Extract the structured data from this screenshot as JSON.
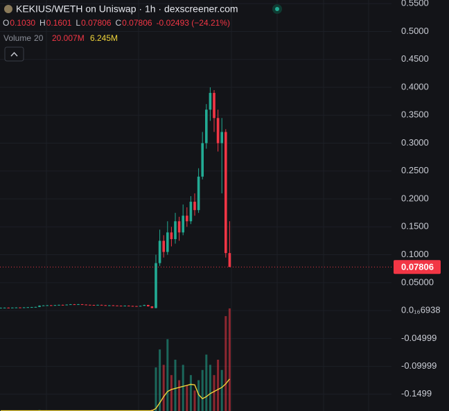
{
  "header": {
    "title": "KEKIUS/WETH on Uniswap · 1h · dexscreener.com",
    "ohlc": [
      {
        "key": "O",
        "value": "0.1030"
      },
      {
        "key": "H",
        "value": "0.1601"
      },
      {
        "key": "L",
        "value": "0.07806"
      },
      {
        "key": "C",
        "value": "0.07806"
      }
    ],
    "change": "-0.02493 (−24.21%)"
  },
  "chart_data": {
    "type": "candlestick",
    "open": [
      0.0048,
      0.005,
      0.0052,
      0.0049,
      0.0053,
      0.0055,
      0.0054,
      0.0057,
      0.006,
      0.0062,
      0.0065,
      0.0088,
      0.0092,
      0.0095,
      0.0093,
      0.0098,
      0.0102,
      0.01,
      0.0106,
      0.0112,
      0.0108,
      0.0113,
      0.0107,
      0.0103,
      0.01,
      0.0098,
      0.0102,
      0.0096,
      0.0092,
      0.0094,
      0.009,
      0.0087,
      0.0085,
      0.0088,
      0.0083,
      0.008,
      0.0078,
      0.0085,
      0.01,
      0.0075,
      0.0045,
      0.085,
      0.125,
      0.105,
      0.14,
      0.128,
      0.16,
      0.14,
      0.17,
      0.16,
      0.195,
      0.18,
      0.24,
      0.3,
      0.36,
      0.39,
      0.345,
      0.3,
      0.32,
      0.103
    ],
    "high": [
      0.0053,
      0.0054,
      0.0055,
      0.0056,
      0.0058,
      0.0058,
      0.006,
      0.0063,
      0.0065,
      0.0068,
      0.0092,
      0.0096,
      0.0099,
      0.0099,
      0.0101,
      0.0106,
      0.0106,
      0.011,
      0.0116,
      0.0116,
      0.0117,
      0.0116,
      0.011,
      0.0106,
      0.0103,
      0.0105,
      0.0105,
      0.0099,
      0.0097,
      0.0097,
      0.0093,
      0.009,
      0.0091,
      0.0091,
      0.0086,
      0.0083,
      0.0088,
      0.0104,
      0.0103,
      0.0078,
      0.1,
      0.145,
      0.135,
      0.16,
      0.15,
      0.175,
      0.168,
      0.19,
      0.185,
      0.205,
      0.21,
      0.255,
      0.32,
      0.37,
      0.4,
      0.395,
      0.36,
      0.345,
      0.325,
      0.1601
    ],
    "low": [
      0.0045,
      0.0047,
      0.0046,
      0.0046,
      0.005,
      0.0051,
      0.0051,
      0.0054,
      0.0057,
      0.0059,
      0.0062,
      0.0085,
      0.0089,
      0.009,
      0.009,
      0.0095,
      0.0097,
      0.0097,
      0.0103,
      0.0105,
      0.0105,
      0.0104,
      0.01,
      0.0097,
      0.0095,
      0.0095,
      0.0093,
      0.0089,
      0.0089,
      0.0087,
      0.0084,
      0.0082,
      0.0082,
      0.008,
      0.0077,
      0.0075,
      0.0075,
      0.0082,
      0.0072,
      0.0042,
      0.004,
      0.08,
      0.095,
      0.1,
      0.115,
      0.12,
      0.125,
      0.135,
      0.15,
      0.155,
      0.17,
      0.175,
      0.235,
      0.29,
      0.34,
      0.32,
      0.285,
      0.21,
      0.095,
      0.07806
    ],
    "close": [
      0.005,
      0.0052,
      0.0049,
      0.0053,
      0.0055,
      0.0054,
      0.0057,
      0.006,
      0.0062,
      0.0065,
      0.0088,
      0.0092,
      0.0095,
      0.0093,
      0.0098,
      0.0102,
      0.01,
      0.0106,
      0.0112,
      0.0108,
      0.0113,
      0.0107,
      0.0103,
      0.01,
      0.0098,
      0.0102,
      0.0096,
      0.0092,
      0.0094,
      0.009,
      0.0087,
      0.0085,
      0.0088,
      0.0083,
      0.008,
      0.0078,
      0.0085,
      0.01,
      0.0075,
      0.0045,
      0.085,
      0.125,
      0.105,
      0.14,
      0.128,
      0.16,
      0.14,
      0.17,
      0.16,
      0.195,
      0.18,
      0.24,
      0.3,
      0.36,
      0.39,
      0.345,
      0.3,
      0.32,
      0.103,
      0.07806
    ],
    "up_color": "#22ab94",
    "down_color": "#f23645",
    "ylim": [
      -0.18,
      0.5565
    ],
    "yticks": [
      {
        "value": 0.55,
        "label": "0.5500"
      },
      {
        "value": 0.5,
        "label": "0.5000"
      },
      {
        "value": 0.45,
        "label": "0.4500"
      },
      {
        "value": 0.4,
        "label": "0.4000"
      },
      {
        "value": 0.35,
        "label": "0.3500"
      },
      {
        "value": 0.3,
        "label": "0.3000"
      },
      {
        "value": 0.25,
        "label": "0.2500"
      },
      {
        "value": 0.2,
        "label": "0.2000"
      },
      {
        "value": 0.15,
        "label": "0.1500"
      },
      {
        "value": 0.1,
        "label": "0.1000"
      },
      {
        "value": 0.05,
        "label": "0.05000"
      },
      {
        "value": 6.938e-17,
        "label": "0.0₁₆6938"
      },
      -0.04999,
      -0.09999,
      -0.1499
    ],
    "grid": true,
    "volume": {
      "name": "Volume",
      "length": 20,
      "values": [
        0.05,
        0.04,
        0.05,
        0.03,
        0.05,
        0.04,
        0.06,
        0.05,
        0.04,
        0.06,
        0.2,
        0.12,
        0.08,
        0.06,
        0.07,
        0.08,
        0.06,
        0.07,
        0.09,
        0.06,
        0.07,
        0.05,
        0.06,
        0.05,
        0.04,
        0.05,
        0.06,
        0.05,
        0.04,
        0.05,
        0.04,
        0.05,
        0.04,
        0.05,
        0.04,
        0.05,
        0.06,
        0.1,
        0.12,
        0.3,
        8.5,
        12,
        9,
        14,
        7,
        10,
        6,
        9,
        5,
        7,
        4,
        6,
        8,
        11,
        9,
        7,
        10,
        8,
        18.5,
        20.007
      ],
      "ma": [
        0.05,
        0.05,
        0.05,
        0.05,
        0.05,
        0.05,
        0.05,
        0.05,
        0.05,
        0.05,
        0.05,
        0.05,
        0.05,
        0.05,
        0.05,
        0.05,
        0.05,
        0.05,
        0.05,
        0.05,
        0.05,
        0.05,
        0.05,
        0.05,
        0.05,
        0.05,
        0.05,
        0.05,
        0.05,
        0.05,
        0.05,
        0.05,
        0.05,
        0.05,
        0.05,
        0.05,
        0.05,
        0.05,
        0.05,
        0.05,
        0.5,
        1.6,
        2.8,
        3.8,
        4.2,
        4.4,
        4.6,
        4.8,
        5.0,
        5.2,
        5.1,
        3.2,
        2.4,
        2.8,
        3.4,
        3.8,
        4.2,
        4.6,
        5.3,
        6.245
      ],
      "value_label": "20.007M",
      "ma_label": "6.245M",
      "ma_color": "#f0d43a"
    }
  }
}
